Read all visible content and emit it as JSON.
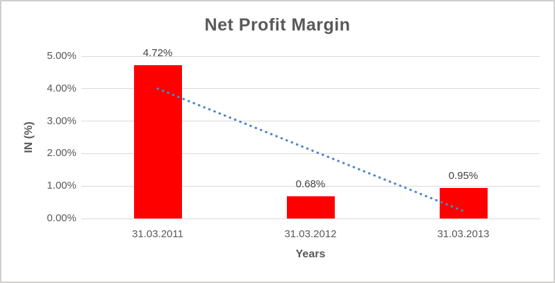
{
  "frame": {
    "background": "#ffffff",
    "border_color": "#d0cece"
  },
  "chart_data": {
    "type": "bar",
    "title": "Net Profit Margin",
    "xlabel": "Years",
    "ylabel": "IN (%)",
    "categories": [
      "31.03.2011",
      "31.03.2012",
      "31.03.2013"
    ],
    "series": [
      {
        "name": "Net Profit Margin",
        "values": [
          4.72,
          0.68,
          0.95
        ]
      }
    ],
    "data_labels": [
      "4.72%",
      "0.68%",
      "0.95%"
    ],
    "ylim": [
      0,
      5
    ],
    "y_ticks": [
      "0.00%",
      "1.00%",
      "2.00%",
      "3.00%",
      "4.00%",
      "5.00%"
    ],
    "grid": true,
    "legend": "none",
    "bar_color": "#ff0000",
    "gridline_color": "#d9d9d9",
    "text_color": "#595959",
    "trendline": {
      "type": "linear",
      "style": "dotted",
      "color": "#4e86c8",
      "start_value": 4.0,
      "end_value": 0.23
    }
  }
}
